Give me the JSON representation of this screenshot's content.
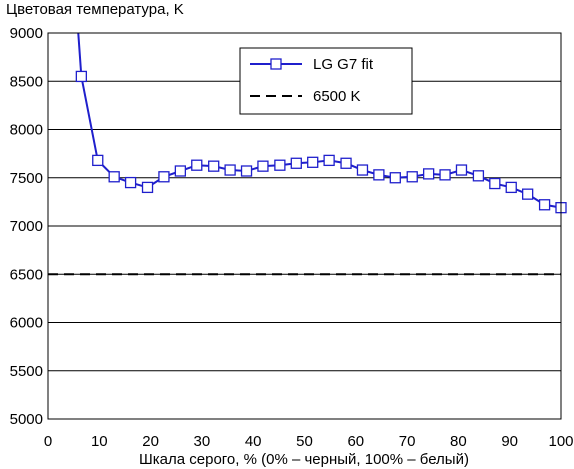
{
  "chart_data": {
    "type": "line",
    "title": "",
    "ylabel": "Цветовая температура, K",
    "xlabel": "Шкала серого, % (0% – черный, 100% – белый)",
    "xlim": [
      0,
      100
    ],
    "ylim": [
      5000,
      9000
    ],
    "xticks": [
      "0",
      "10",
      "20",
      "30",
      "40",
      "50",
      "60",
      "70",
      "80",
      "90",
      "100"
    ],
    "yticks": [
      "5000",
      "5500",
      "6000",
      "6500",
      "7000",
      "7500",
      "8000",
      "8500",
      "9000"
    ],
    "grid": "horizontal",
    "legend_position": "top-right",
    "series": [
      {
        "name": "LG G7 fit",
        "color": "#1f1fcc",
        "marker": "square",
        "x": [
          6.5,
          9.7,
          12.9,
          16.1,
          19.4,
          22.6,
          25.8,
          29.0,
          32.3,
          35.5,
          38.7,
          41.9,
          45.2,
          48.4,
          51.6,
          54.8,
          58.1,
          61.3,
          64.5,
          67.7,
          71.0,
          74.2,
          77.4,
          80.6,
          83.9,
          87.1,
          90.3,
          93.5,
          96.8,
          100.0
        ],
        "values": [
          8550,
          7680,
          7510,
          7450,
          7400,
          7510,
          7570,
          7630,
          7620,
          7580,
          7570,
          7620,
          7630,
          7650,
          7660,
          7680,
          7650,
          7580,
          7530,
          7500,
          7510,
          7540,
          7530,
          7580,
          7520,
          7440,
          7400,
          7330,
          7220,
          7190
        ]
      },
      {
        "name": "6500 K",
        "color": "#000000",
        "style": "dashed",
        "x": [
          0,
          100
        ],
        "values": [
          6500,
          6500
        ]
      }
    ],
    "offscale_segment_start": {
      "x": 5.9,
      "y": 9000
    }
  }
}
